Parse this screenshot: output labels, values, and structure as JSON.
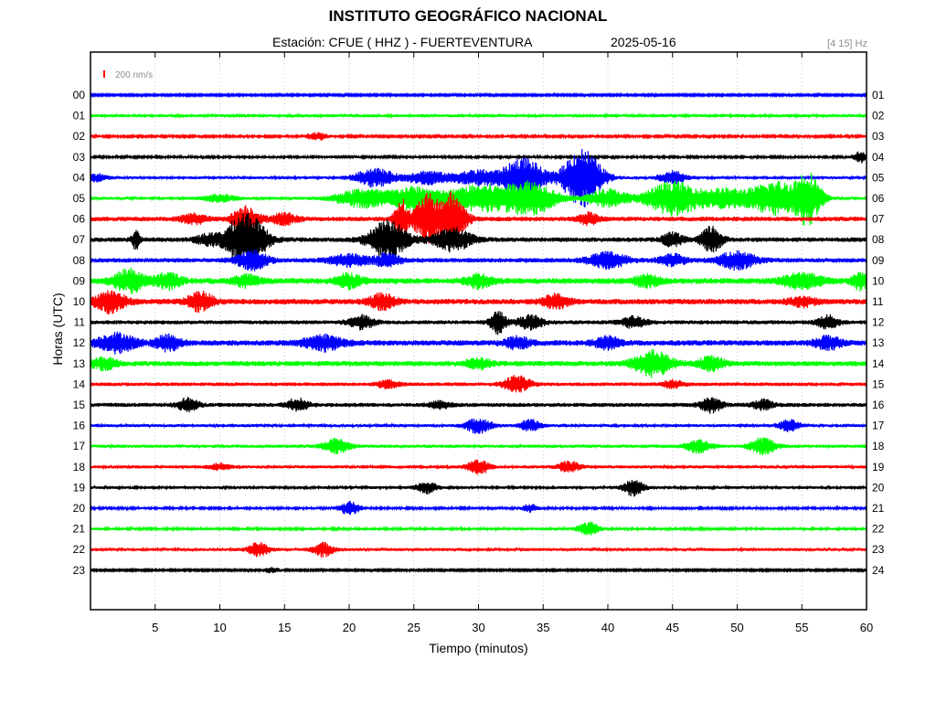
{
  "header": {
    "institution": "INSTITUTO GEOGRÁFICO NACIONAL",
    "station_label": "Estación:  CFUE ( HHZ ) - FUERTEVENTURA",
    "date": "2025-05-16",
    "filter_band": "[4 15] Hz"
  },
  "colors": {
    "black": "#000000",
    "blue": "#0000ff",
    "green": "#00ff00",
    "red": "#ff0000",
    "scale": "#ff0000",
    "grid": "#c8c8c8"
  },
  "chart_data": {
    "type": "line",
    "title": "INSTITUTO GEOGRÁFICO NACIONAL",
    "subtitle": "Estación:  CFUE ( HHZ ) - FUERTEVENTURA",
    "xlabel": "Tiempo (minutos)",
    "ylabel": "Horas (UTC)",
    "xlim": [
      0,
      60
    ],
    "xticks": [
      5,
      10,
      15,
      20,
      25,
      30,
      35,
      40,
      45,
      50,
      55,
      60
    ],
    "grid": true,
    "scale_bar_label": "200 nm/s",
    "color_cycle": [
      "blue",
      "green",
      "red",
      "black"
    ],
    "left_hour_labels": [
      "00",
      "01",
      "02",
      "03",
      "04",
      "05",
      "06",
      "07",
      "08",
      "09",
      "10",
      "11",
      "12",
      "13",
      "14",
      "15",
      "16",
      "17",
      "18",
      "19",
      "20",
      "21",
      "22",
      "23"
    ],
    "right_hour_labels": [
      "01",
      "02",
      "03",
      "04",
      "05",
      "06",
      "07",
      "08",
      "09",
      "10",
      "11",
      "12",
      "13",
      "14",
      "15",
      "16",
      "17",
      "18",
      "19",
      "20",
      "21",
      "22",
      "23",
      "24"
    ],
    "traces": [
      {
        "hour": "00",
        "noise": 1.0,
        "bursts": []
      },
      {
        "hour": "01",
        "noise": 1.5,
        "bursts": []
      },
      {
        "hour": "02",
        "noise": 1.2,
        "bursts": [
          {
            "t": 17.5,
            "amp": 4,
            "dur": 0.8
          }
        ]
      },
      {
        "hour": "03",
        "noise": 1.3,
        "bursts": [
          {
            "t": 59.6,
            "amp": 6,
            "dur": 0.6
          }
        ]
      },
      {
        "hour": "04",
        "noise": 1.5,
        "bursts": [
          {
            "t": 0.5,
            "amp": 4,
            "dur": 0.8
          },
          {
            "t": 22,
            "amp": 10,
            "dur": 1.5
          },
          {
            "t": 26,
            "amp": 7,
            "dur": 1.5
          },
          {
            "t": 30,
            "amp": 8,
            "dur": 2
          },
          {
            "t": 33.5,
            "amp": 22,
            "dur": 1.5
          },
          {
            "t": 38,
            "amp": 32,
            "dur": 1.5
          },
          {
            "t": 45,
            "amp": 7,
            "dur": 1
          }
        ]
      },
      {
        "hour": "05",
        "noise": 1.6,
        "bursts": [
          {
            "t": 10,
            "amp": 4,
            "dur": 1.2
          },
          {
            "t": 21,
            "amp": 10,
            "dur": 2
          },
          {
            "t": 25,
            "amp": 12,
            "dur": 2
          },
          {
            "t": 30,
            "amp": 14,
            "dur": 2.5
          },
          {
            "t": 34,
            "amp": 18,
            "dur": 2
          },
          {
            "t": 40,
            "amp": 10,
            "dur": 1.5
          },
          {
            "t": 45,
            "amp": 18,
            "dur": 2
          },
          {
            "t": 49,
            "amp": 10,
            "dur": 2
          },
          {
            "t": 53,
            "amp": 18,
            "dur": 2
          },
          {
            "t": 55.5,
            "amp": 26,
            "dur": 1
          }
        ]
      },
      {
        "hour": "06",
        "noise": 2.5,
        "bursts": [
          {
            "t": 8,
            "amp": 5,
            "dur": 1
          },
          {
            "t": 12,
            "amp": 14,
            "dur": 1
          },
          {
            "t": 15,
            "amp": 6,
            "dur": 1
          },
          {
            "t": 24,
            "amp": 22,
            "dur": 0.5
          },
          {
            "t": 26,
            "amp": 26,
            "dur": 1
          },
          {
            "t": 28,
            "amp": 28,
            "dur": 1
          },
          {
            "t": 38.5,
            "amp": 6,
            "dur": 0.8
          }
        ]
      },
      {
        "hour": "07",
        "noise": 2.5,
        "bursts": [
          {
            "t": 3.5,
            "amp": 10,
            "dur": 0.3
          },
          {
            "t": 9,
            "amp": 5,
            "dur": 1
          },
          {
            "t": 12,
            "amp": 30,
            "dur": 1.5
          },
          {
            "t": 23,
            "amp": 20,
            "dur": 1.5
          },
          {
            "t": 28,
            "amp": 12,
            "dur": 1.5
          },
          {
            "t": 45,
            "amp": 7,
            "dur": 0.8
          },
          {
            "t": 48,
            "amp": 14,
            "dur": 0.8
          }
        ]
      },
      {
        "hour": "08",
        "noise": 2.5,
        "bursts": [
          {
            "t": 12.5,
            "amp": 10,
            "dur": 1.2
          },
          {
            "t": 20,
            "amp": 6,
            "dur": 1.5
          },
          {
            "t": 23,
            "amp": 7,
            "dur": 1
          },
          {
            "t": 40,
            "amp": 8,
            "dur": 1.5
          },
          {
            "t": 45,
            "amp": 6,
            "dur": 1
          },
          {
            "t": 50,
            "amp": 9,
            "dur": 1.5
          }
        ]
      },
      {
        "hour": "09",
        "noise": 3.2,
        "bursts": [
          {
            "t": 3,
            "amp": 12,
            "dur": 1.2
          },
          {
            "t": 6,
            "amp": 8,
            "dur": 1
          },
          {
            "t": 12,
            "amp": 6,
            "dur": 1
          },
          {
            "t": 20,
            "amp": 7,
            "dur": 1
          },
          {
            "t": 30,
            "amp": 7,
            "dur": 1
          },
          {
            "t": 43,
            "amp": 6,
            "dur": 1
          },
          {
            "t": 55,
            "amp": 8,
            "dur": 1.5
          },
          {
            "t": 59.5,
            "amp": 9,
            "dur": 0.6
          }
        ]
      },
      {
        "hour": "10",
        "noise": 3.0,
        "bursts": [
          {
            "t": 1.5,
            "amp": 11,
            "dur": 1.2
          },
          {
            "t": 8.5,
            "amp": 10,
            "dur": 1
          },
          {
            "t": 22.5,
            "amp": 8,
            "dur": 1
          },
          {
            "t": 36,
            "amp": 7,
            "dur": 1
          },
          {
            "t": 55,
            "amp": 5,
            "dur": 1
          }
        ]
      },
      {
        "hour": "11",
        "noise": 2.2,
        "bursts": [
          {
            "t": 21,
            "amp": 7,
            "dur": 1
          },
          {
            "t": 31.5,
            "amp": 12,
            "dur": 0.6
          },
          {
            "t": 34,
            "amp": 7,
            "dur": 1
          },
          {
            "t": 42,
            "amp": 6,
            "dur": 1
          },
          {
            "t": 57,
            "amp": 7,
            "dur": 0.8
          }
        ]
      },
      {
        "hour": "12",
        "noise": 3.0,
        "bursts": [
          {
            "t": 2,
            "amp": 10,
            "dur": 1.5
          },
          {
            "t": 6,
            "amp": 8,
            "dur": 1
          },
          {
            "t": 18,
            "amp": 8,
            "dur": 1.5
          },
          {
            "t": 33,
            "amp": 6,
            "dur": 1
          },
          {
            "t": 40,
            "amp": 6,
            "dur": 1
          },
          {
            "t": 57,
            "amp": 7,
            "dur": 1
          }
        ]
      },
      {
        "hour": "13",
        "noise": 2.8,
        "bursts": [
          {
            "t": 1,
            "amp": 6,
            "dur": 1
          },
          {
            "t": 30,
            "amp": 5,
            "dur": 1
          },
          {
            "t": 43.5,
            "amp": 13,
            "dur": 1.5
          },
          {
            "t": 48,
            "amp": 7,
            "dur": 1
          }
        ]
      },
      {
        "hour": "14",
        "noise": 2.0,
        "bursts": [
          {
            "t": 23,
            "amp": 4,
            "dur": 0.8
          },
          {
            "t": 33,
            "amp": 9,
            "dur": 1
          },
          {
            "t": 45,
            "amp": 4,
            "dur": 0.8
          }
        ]
      },
      {
        "hour": "15",
        "noise": 2.2,
        "bursts": [
          {
            "t": 7.5,
            "amp": 7,
            "dur": 0.8
          },
          {
            "t": 16,
            "amp": 7,
            "dur": 0.8
          },
          {
            "t": 27,
            "amp": 4,
            "dur": 0.8
          },
          {
            "t": 48,
            "amp": 8,
            "dur": 0.8
          },
          {
            "t": 52,
            "amp": 5,
            "dur": 0.8
          }
        ]
      },
      {
        "hour": "16",
        "noise": 1.6,
        "bursts": [
          {
            "t": 30,
            "amp": 8,
            "dur": 1
          },
          {
            "t": 34,
            "amp": 6,
            "dur": 0.8
          },
          {
            "t": 54,
            "amp": 6,
            "dur": 0.8
          }
        ]
      },
      {
        "hour": "17",
        "noise": 1.7,
        "bursts": [
          {
            "t": 19,
            "amp": 8,
            "dur": 1
          },
          {
            "t": 47,
            "amp": 7,
            "dur": 1
          },
          {
            "t": 52,
            "amp": 9,
            "dur": 1
          }
        ]
      },
      {
        "hour": "18",
        "noise": 1.7,
        "bursts": [
          {
            "t": 30,
            "amp": 8,
            "dur": 0.8
          },
          {
            "t": 37,
            "amp": 6,
            "dur": 0.8
          },
          {
            "t": 10,
            "amp": 3,
            "dur": 0.8
          }
        ]
      },
      {
        "hour": "19",
        "noise": 1.5,
        "bursts": [
          {
            "t": 26,
            "amp": 6,
            "dur": 0.8
          },
          {
            "t": 42,
            "amp": 9,
            "dur": 0.8
          }
        ]
      },
      {
        "hour": "20",
        "noise": 1.3,
        "bursts": [
          {
            "t": 20,
            "amp": 7,
            "dur": 0.8
          },
          {
            "t": 34,
            "amp": 4,
            "dur": 0.6
          }
        ]
      },
      {
        "hour": "21",
        "noise": 1.4,
        "bursts": [
          {
            "t": 38.5,
            "amp": 7,
            "dur": 0.8
          }
        ]
      },
      {
        "hour": "22",
        "noise": 1.7,
        "bursts": [
          {
            "t": 13,
            "amp": 7,
            "dur": 0.8
          },
          {
            "t": 18,
            "amp": 7,
            "dur": 0.8
          }
        ]
      },
      {
        "hour": "23",
        "noise": 1.0,
        "bursts": [
          {
            "t": 14,
            "amp": 3,
            "dur": 0.6
          }
        ]
      }
    ]
  }
}
